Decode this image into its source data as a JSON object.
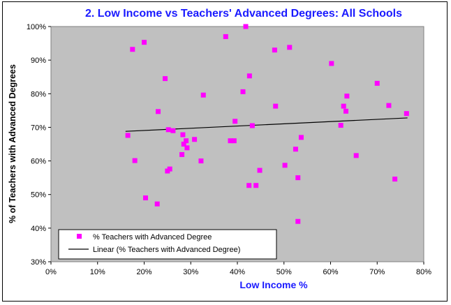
{
  "chart_data": {
    "type": "scatter",
    "title": "2. Low Income vs Teachers' Advanced Degrees:  All Schools",
    "xlabel": "Low Income %",
    "ylabel": "% of Teachers with Advanced Degrees",
    "xlim": [
      0,
      0.8
    ],
    "ylim": [
      0.3,
      1.0
    ],
    "xticks": [
      "0%",
      "10%",
      "20%",
      "30%",
      "40%",
      "50%",
      "60%",
      "70%",
      "80%"
    ],
    "yticks": [
      "30%",
      "40%",
      "50%",
      "60%",
      "70%",
      "80%",
      "90%",
      "100%"
    ],
    "grid": false,
    "legend_placement": "bottom-left",
    "colors": {
      "plot_background": "#c0c0c0",
      "marker": "#ff00ff",
      "trendline": "#000000",
      "title": "#1a1aff"
    },
    "series": [
      {
        "name": "% Teachers with Advanced Degree",
        "points": [
          [
            0.165,
            0.676
          ],
          [
            0.175,
            0.932
          ],
          [
            0.18,
            0.601
          ],
          [
            0.2,
            0.953
          ],
          [
            0.203,
            0.49
          ],
          [
            0.228,
            0.472
          ],
          [
            0.23,
            0.747
          ],
          [
            0.245,
            0.845
          ],
          [
            0.25,
            0.57
          ],
          [
            0.252,
            0.693
          ],
          [
            0.255,
            0.576
          ],
          [
            0.262,
            0.69
          ],
          [
            0.281,
            0.619
          ],
          [
            0.283,
            0.678
          ],
          [
            0.285,
            0.65
          ],
          [
            0.29,
            0.66
          ],
          [
            0.292,
            0.639
          ],
          [
            0.308,
            0.664
          ],
          [
            0.322,
            0.6
          ],
          [
            0.327,
            0.796
          ],
          [
            0.375,
            0.97
          ],
          [
            0.385,
            0.66
          ],
          [
            0.393,
            0.66
          ],
          [
            0.395,
            0.718
          ],
          [
            0.412,
            0.806
          ],
          [
            0.418,
            1.0
          ],
          [
            0.425,
            0.527
          ],
          [
            0.426,
            0.853
          ],
          [
            0.432,
            0.705
          ],
          [
            0.44,
            0.527
          ],
          [
            0.448,
            0.572
          ],
          [
            0.48,
            0.93
          ],
          [
            0.482,
            0.763
          ],
          [
            0.502,
            0.587
          ],
          [
            0.512,
            0.938
          ],
          [
            0.525,
            0.635
          ],
          [
            0.53,
            0.55
          ],
          [
            0.53,
            0.42
          ],
          [
            0.537,
            0.67
          ],
          [
            0.602,
            0.89
          ],
          [
            0.622,
            0.706
          ],
          [
            0.628,
            0.763
          ],
          [
            0.633,
            0.748
          ],
          [
            0.635,
            0.793
          ],
          [
            0.655,
            0.616
          ],
          [
            0.7,
            0.831
          ],
          [
            0.725,
            0.765
          ],
          [
            0.738,
            0.546
          ],
          [
            0.763,
            0.741
          ]
        ]
      },
      {
        "name": "Linear (% Teachers with Advanced Degree)",
        "line": [
          [
            0.16,
            0.688
          ],
          [
            0.765,
            0.728
          ]
        ]
      }
    ]
  }
}
